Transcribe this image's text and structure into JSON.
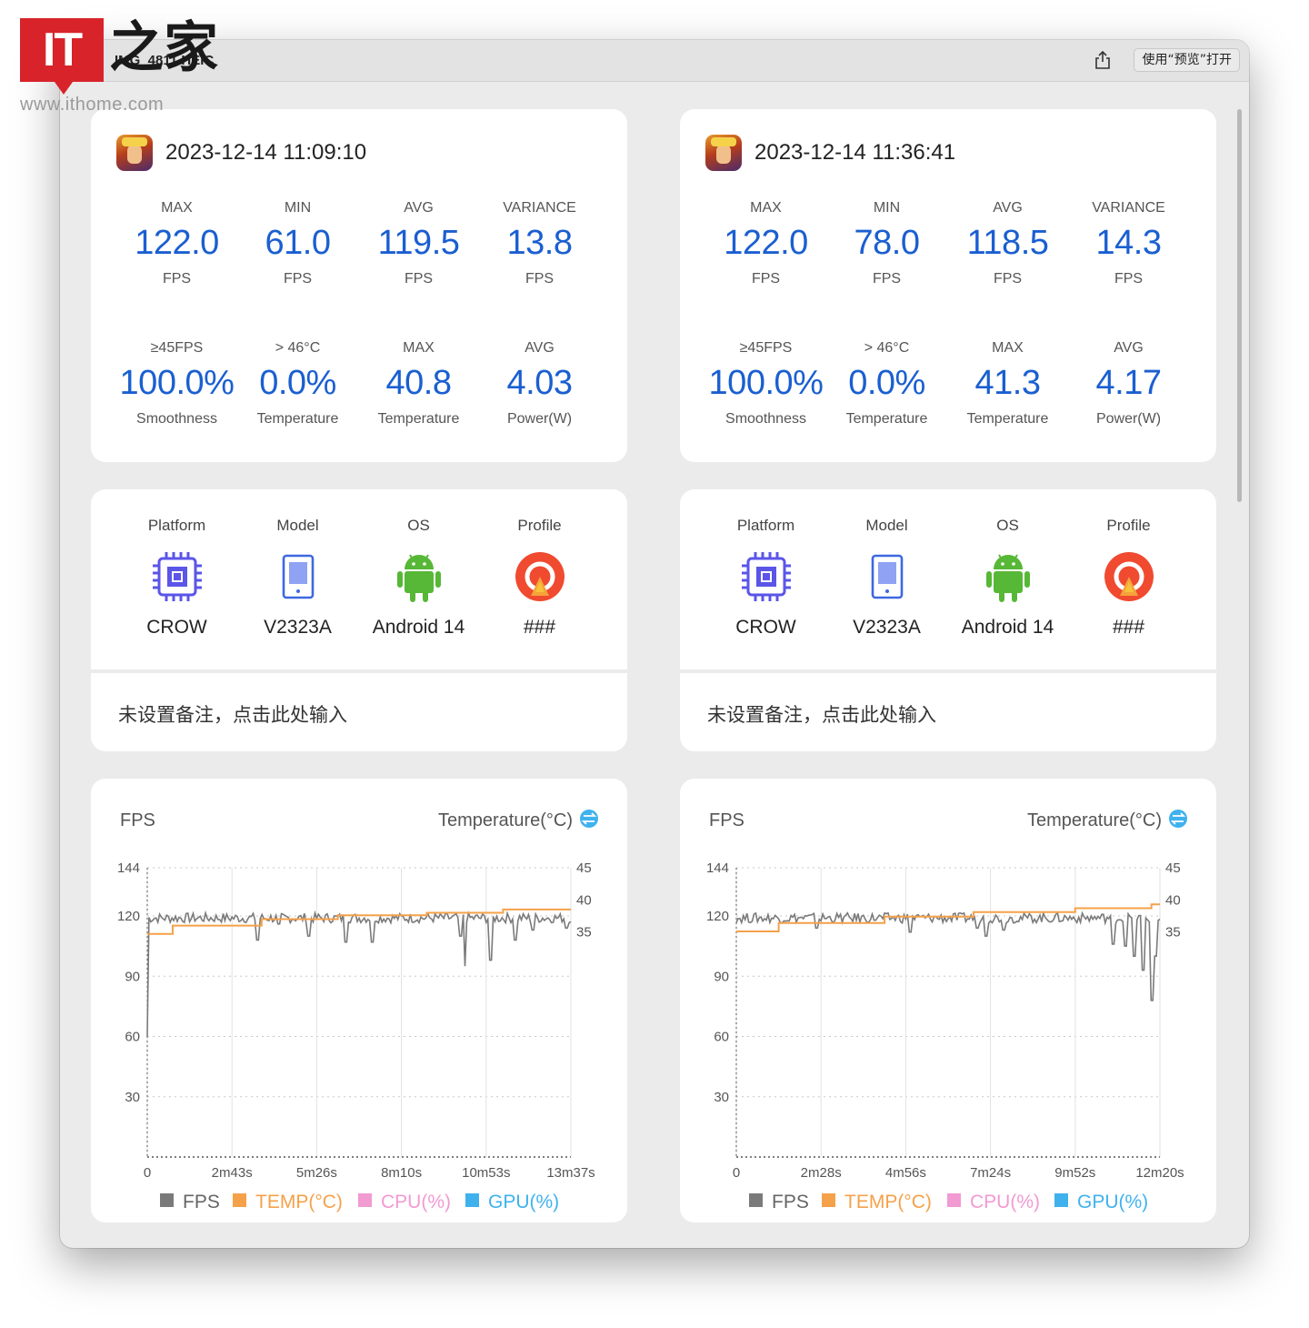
{
  "watermark": {
    "logo_text": "IT",
    "logo_cn": "之家",
    "url": "www.ithome.com"
  },
  "window": {
    "title": "IMG_4811.HEIC",
    "open_button": "使用“预览”打开"
  },
  "reports": [
    {
      "datetime": "2023-12-14 11:09:10",
      "metrics_row1": [
        {
          "label": "MAX",
          "value": "122.0",
          "unit": "FPS"
        },
        {
          "label": "MIN",
          "value": "61.0",
          "unit": "FPS"
        },
        {
          "label": "AVG",
          "value": "119.5",
          "unit": "FPS"
        },
        {
          "label": "VARIANCE",
          "value": "13.8",
          "unit": "FPS"
        }
      ],
      "metrics_row2": [
        {
          "label": "≥45FPS",
          "value": "100.0%",
          "unit": "Smoothness"
        },
        {
          "label": "> 46°C",
          "value": "0.0%",
          "unit": "Temperature"
        },
        {
          "label": "MAX",
          "value": "40.8",
          "unit": "Temperature"
        },
        {
          "label": "AVG",
          "value": "4.03",
          "unit": "Power(W)"
        }
      ],
      "device": [
        {
          "label": "Platform",
          "value": "CROW",
          "icon": "chip-icon"
        },
        {
          "label": "Model",
          "value": "V2323A",
          "icon": "phone-icon"
        },
        {
          "label": "OS",
          "value": "Android 14",
          "icon": "android-icon"
        },
        {
          "label": "Profile",
          "value": "###",
          "icon": "profile-icon"
        }
      ],
      "note": "未设置备注，点击此处输入",
      "chart_data": {
        "type": "line",
        "title_left": "FPS",
        "title_right": "Temperature(°C)",
        "y_left_ticks": [
          "144",
          "120",
          "90",
          "60",
          "30"
        ],
        "y_right_ticks": [
          "45",
          "40",
          "35"
        ],
        "x_ticks": [
          "0",
          "2m43s",
          "5m26s",
          "8m10s",
          "10m53s",
          "13m37s"
        ],
        "legend": [
          "FPS",
          "TEMP(°C)",
          "CPU(%)",
          "GPU(%)"
        ],
        "colors": {
          "FPS": "#7a7a7a",
          "TEMP": "#f5a14a",
          "CPU": "#f29ad2",
          "GPU": "#3fb2ee"
        },
        "ylim_left": [
          0,
          144
        ],
        "ylim_right": [
          0,
          45
        ],
        "duration_s": 817,
        "fps_dips": [
          [
            0,
            60
          ],
          [
            0.26,
            108
          ],
          [
            0.31,
            116
          ],
          [
            0.38,
            110
          ],
          [
            0.47,
            107
          ],
          [
            0.53,
            107
          ],
          [
            0.74,
            110
          ],
          [
            0.75,
            95
          ],
          [
            0.81,
            98
          ],
          [
            0.87,
            108
          ],
          [
            0.91,
            113
          ],
          [
            0.99,
            114
          ]
        ],
        "temp_steps": [
          [
            0,
            34.7
          ],
          [
            0.06,
            36.0
          ],
          [
            0.27,
            37.0
          ],
          [
            0.45,
            37.6
          ],
          [
            0.66,
            38.0
          ],
          [
            0.84,
            38.5
          ],
          [
            1.0,
            38.5
          ]
        ]
      }
    },
    {
      "datetime": "2023-12-14 11:36:41",
      "metrics_row1": [
        {
          "label": "MAX",
          "value": "122.0",
          "unit": "FPS"
        },
        {
          "label": "MIN",
          "value": "78.0",
          "unit": "FPS"
        },
        {
          "label": "AVG",
          "value": "118.5",
          "unit": "FPS"
        },
        {
          "label": "VARIANCE",
          "value": "14.3",
          "unit": "FPS"
        }
      ],
      "metrics_row2": [
        {
          "label": "≥45FPS",
          "value": "100.0%",
          "unit": "Smoothness"
        },
        {
          "label": "> 46°C",
          "value": "0.0%",
          "unit": "Temperature"
        },
        {
          "label": "MAX",
          "value": "41.3",
          "unit": "Temperature"
        },
        {
          "label": "AVG",
          "value": "4.17",
          "unit": "Power(W)"
        }
      ],
      "device": [
        {
          "label": "Platform",
          "value": "CROW",
          "icon": "chip-icon"
        },
        {
          "label": "Model",
          "value": "V2323A",
          "icon": "phone-icon"
        },
        {
          "label": "OS",
          "value": "Android 14",
          "icon": "android-icon"
        },
        {
          "label": "Profile",
          "value": "###",
          "icon": "profile-icon"
        }
      ],
      "note": "未设置备注，点击此处输入",
      "chart_data": {
        "type": "line",
        "title_left": "FPS",
        "title_right": "Temperature(°C)",
        "y_left_ticks": [
          "144",
          "120",
          "90",
          "60",
          "30"
        ],
        "y_right_ticks": [
          "45",
          "40",
          "35"
        ],
        "x_ticks": [
          "0",
          "2m28s",
          "4m56s",
          "7m24s",
          "9m52s",
          "12m20s"
        ],
        "legend": [
          "FPS",
          "TEMP(°C)",
          "CPU(%)",
          "GPU(%)"
        ],
        "colors": {
          "FPS": "#7a7a7a",
          "TEMP": "#f5a14a",
          "CPU": "#f29ad2",
          "GPU": "#3fb2ee"
        },
        "ylim_left": [
          0,
          144
        ],
        "ylim_right": [
          0,
          45
        ],
        "duration_s": 740,
        "fps_dips": [
          [
            0.19,
            114
          ],
          [
            0.41,
            112
          ],
          [
            0.57,
            114
          ],
          [
            0.59,
            110
          ],
          [
            0.63,
            113
          ],
          [
            0.89,
            106
          ],
          [
            0.92,
            105
          ],
          [
            0.94,
            100
          ],
          [
            0.96,
            93
          ],
          [
            0.98,
            78
          ],
          [
            0.99,
            100
          ]
        ],
        "temp_steps": [
          [
            0,
            35.1
          ],
          [
            0.1,
            36.4
          ],
          [
            0.35,
            37.4
          ],
          [
            0.56,
            38.1
          ],
          [
            0.8,
            38.7
          ],
          [
            0.98,
            39.3
          ],
          [
            1.0,
            39.3
          ]
        ]
      }
    }
  ]
}
